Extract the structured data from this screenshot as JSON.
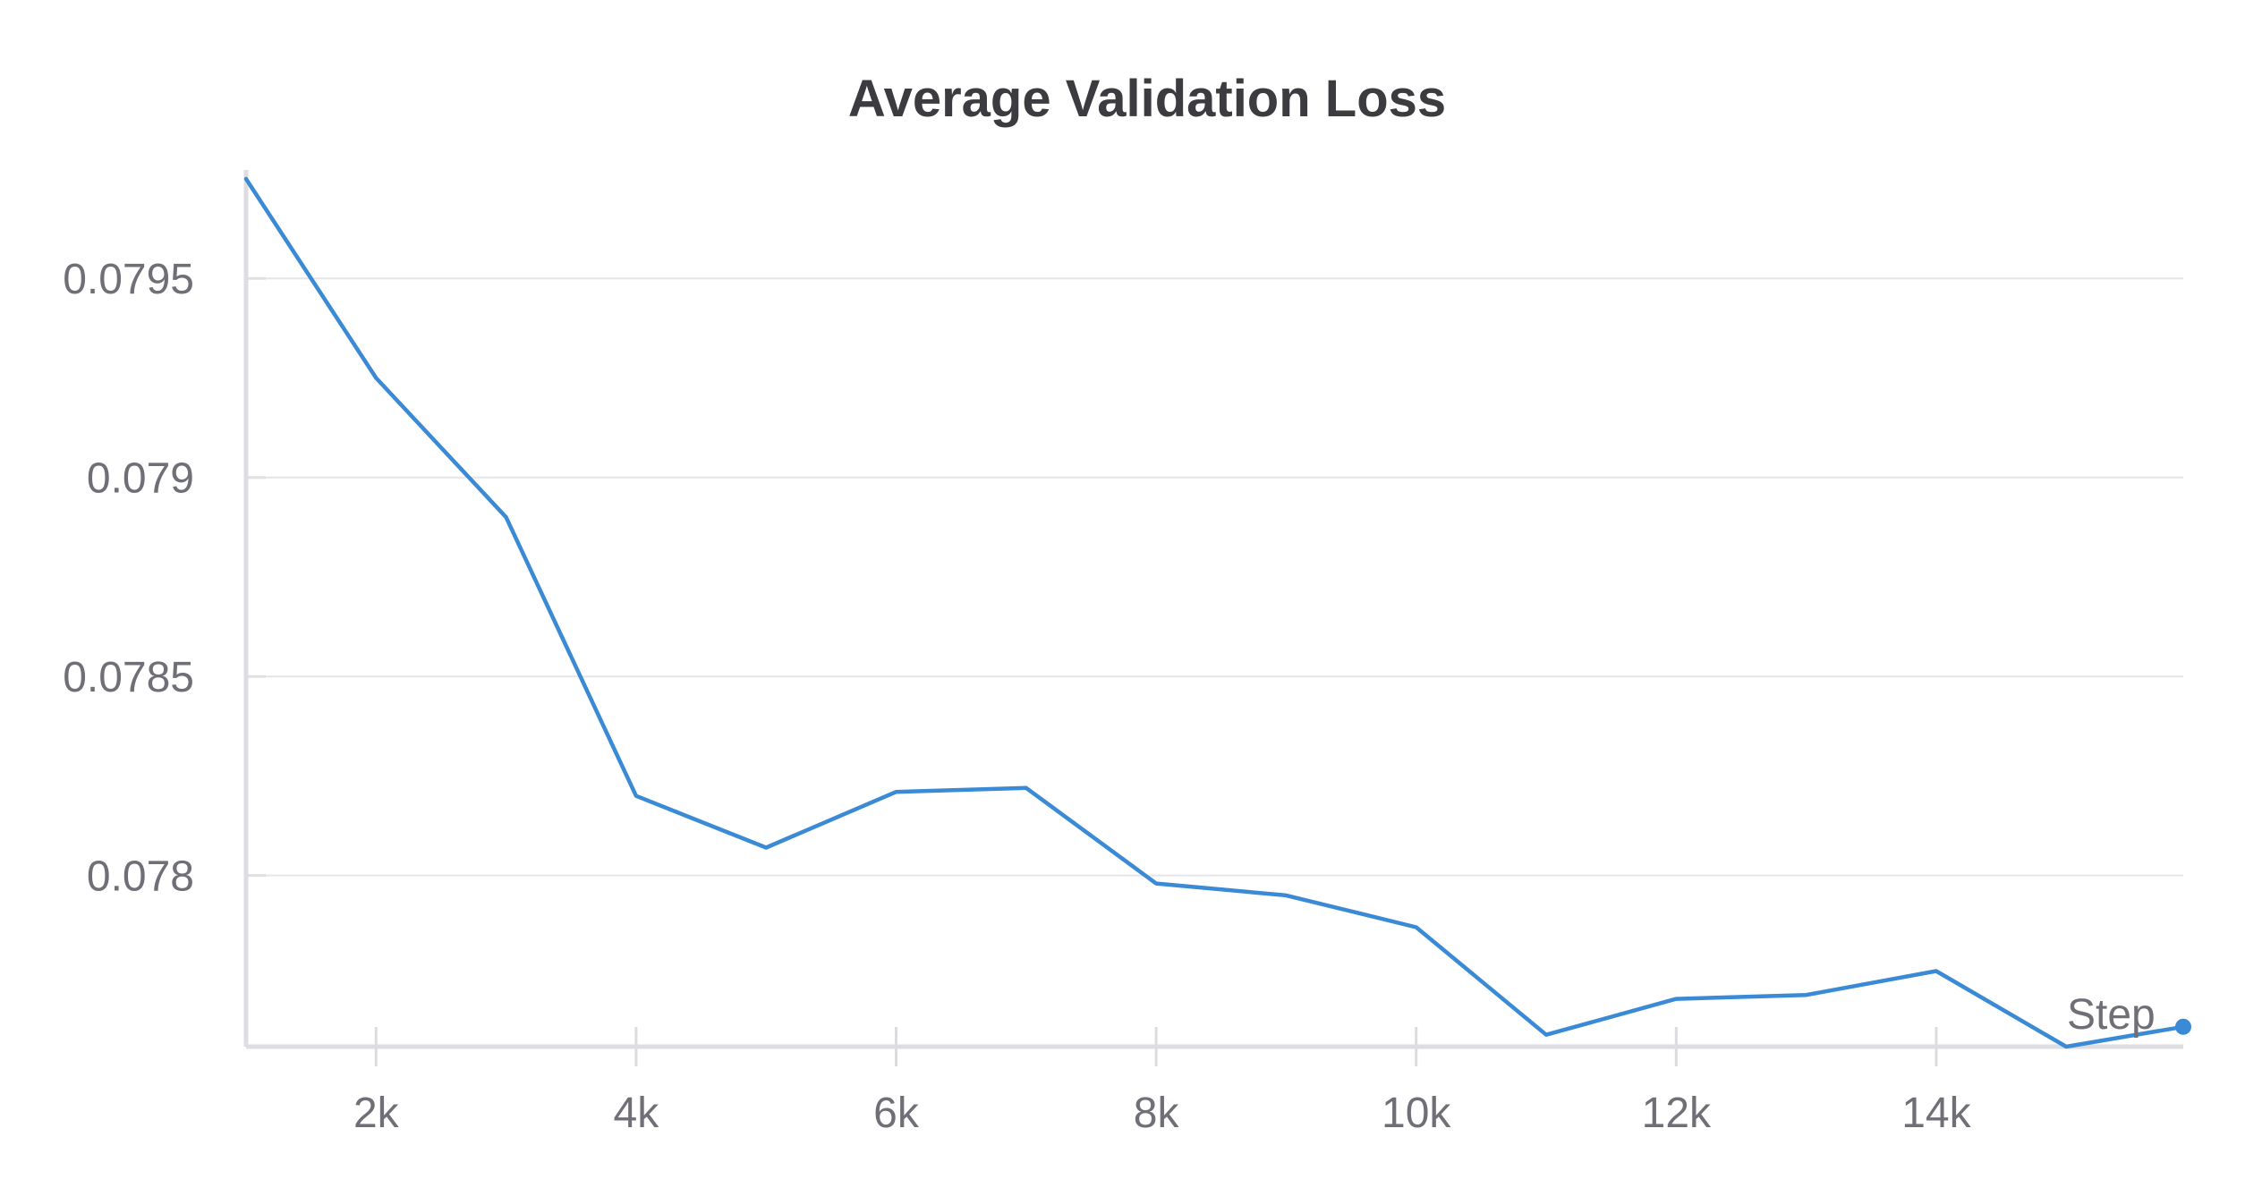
{
  "chart_data": {
    "type": "line",
    "title": "Average Validation Loss",
    "xlabel": "Step",
    "ylabel": "",
    "xlim": [
      1000,
      15900
    ],
    "ylim": [
      0.07757,
      0.07975
    ],
    "x_ticks": [
      2000,
      4000,
      6000,
      8000,
      10000,
      12000,
      14000
    ],
    "x_tick_labels": [
      "2k",
      "4k",
      "6k",
      "8k",
      "10k",
      "12k",
      "14k"
    ],
    "y_ticks": [
      0.078,
      0.0785,
      0.079,
      0.0795
    ],
    "y_tick_labels": [
      "0.078",
      "0.0785",
      "0.079",
      "0.0795"
    ],
    "grid": true,
    "legend": "none",
    "series": [
      {
        "color": "#3a8ad6",
        "x": [
          1000,
          2000,
          3000,
          4000,
          5000,
          6000,
          7000,
          8000,
          9000,
          10000,
          11000,
          12000,
          13000,
          14000,
          15000,
          15900
        ],
        "y": [
          0.07975,
          0.07925,
          0.0789,
          0.0782,
          0.07807,
          0.07821,
          0.07822,
          0.07798,
          0.07795,
          0.07787,
          0.0776,
          0.07769,
          0.0777,
          0.07776,
          0.07757,
          0.07762
        ]
      }
    ]
  }
}
